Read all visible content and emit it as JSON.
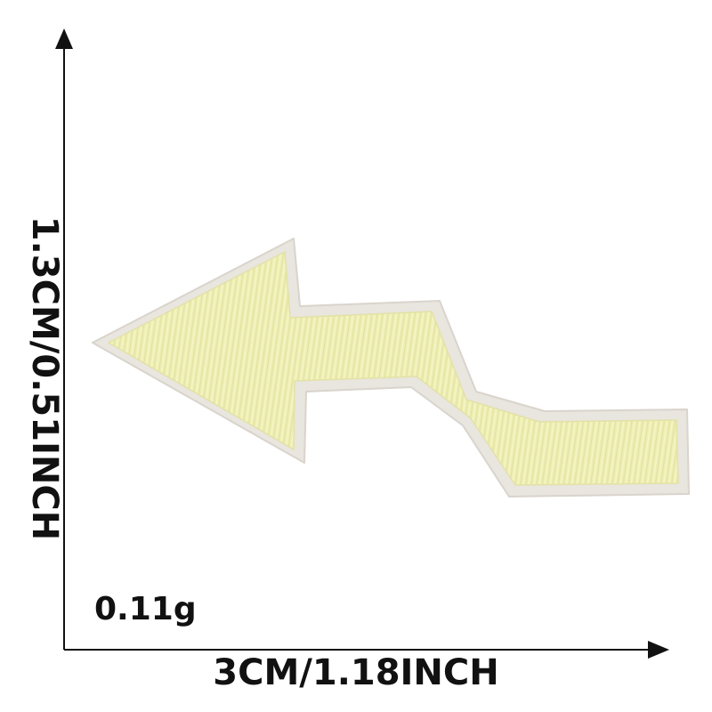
{
  "product": {
    "name": "embroidered-arrow-patch",
    "fill_color": "#efefb4",
    "border_color": "#e6e2dc"
  },
  "dimensions": {
    "width_label": "3CM/1.18INCH",
    "height_label": "1.3CM/0.51INCH",
    "weight_label": "0.11g"
  },
  "axes": {
    "color": "#111111"
  }
}
